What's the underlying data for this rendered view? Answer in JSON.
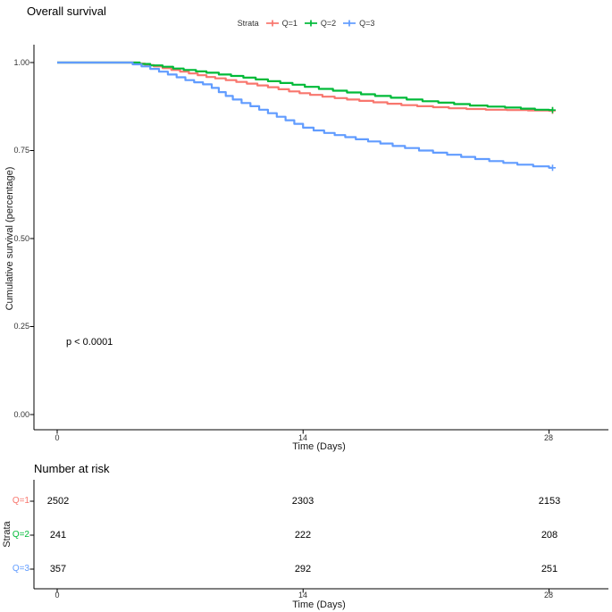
{
  "chart_data": {
    "type": "line",
    "variant": "kaplan_meier_step",
    "title": "Overall survival",
    "xlabel": "Time (Days)",
    "ylabel": "Cumulative survival (percentage)",
    "xlim": [
      0,
      28
    ],
    "ylim": [
      0,
      1
    ],
    "xticks": [
      0,
      14,
      28
    ],
    "xtick_labels": [
      "0",
      "14",
      "28"
    ],
    "yticks": [
      1.0,
      0.75,
      0.5,
      0.25,
      0.0
    ],
    "ytick_labels": [
      "1.00",
      "0.75",
      "0.50",
      "0.25",
      "0.00"
    ],
    "grid": false,
    "legend": {
      "title": "Strata",
      "position": "top"
    },
    "annotation": {
      "pvalue": "p < 0.0001"
    },
    "series": [
      {
        "name": "Q=1",
        "color": "#F8766D",
        "censored_at_end": true,
        "points": [
          [
            0,
            1
          ],
          [
            4.1,
            1
          ],
          [
            4.5,
            0.997
          ],
          [
            5,
            0.993
          ],
          [
            5.5,
            0.989
          ],
          [
            6,
            0.984
          ],
          [
            6.5,
            0.979
          ],
          [
            7,
            0.974
          ],
          [
            7.5,
            0.969
          ],
          [
            8,
            0.964
          ],
          [
            8.5,
            0.959
          ],
          [
            9,
            0.955
          ],
          [
            9.6,
            0.95
          ],
          [
            10.2,
            0.945
          ],
          [
            10.8,
            0.94
          ],
          [
            11.4,
            0.935
          ],
          [
            12,
            0.93
          ],
          [
            12.6,
            0.924
          ],
          [
            13.2,
            0.918
          ],
          [
            13.8,
            0.913
          ],
          [
            14.4,
            0.908
          ],
          [
            15.1,
            0.903
          ],
          [
            15.8,
            0.899
          ],
          [
            16.5,
            0.895
          ],
          [
            17.2,
            0.891
          ],
          [
            18,
            0.887
          ],
          [
            18.8,
            0.883
          ],
          [
            19.6,
            0.879
          ],
          [
            20.5,
            0.876
          ],
          [
            21.4,
            0.873
          ],
          [
            22.3,
            0.87
          ],
          [
            23.3,
            0.868
          ],
          [
            24.4,
            0.866
          ],
          [
            25.6,
            0.865
          ],
          [
            26.8,
            0.864
          ],
          [
            28,
            0.863
          ]
        ]
      },
      {
        "name": "Q=2",
        "color": "#00BA38",
        "censored_at_end": true,
        "points": [
          [
            0,
            1
          ],
          [
            4.3,
            1
          ],
          [
            4.7,
            0.996
          ],
          [
            5.3,
            0.992
          ],
          [
            6,
            0.988
          ],
          [
            6.6,
            0.983
          ],
          [
            7.2,
            0.979
          ],
          [
            7.9,
            0.975
          ],
          [
            8.5,
            0.971
          ],
          [
            9.2,
            0.966
          ],
          [
            9.9,
            0.962
          ],
          [
            10.6,
            0.957
          ],
          [
            11.3,
            0.952
          ],
          [
            12,
            0.947
          ],
          [
            12.7,
            0.942
          ],
          [
            13.4,
            0.937
          ],
          [
            14.1,
            0.931
          ],
          [
            14.9,
            0.925
          ],
          [
            15.7,
            0.92
          ],
          [
            16.5,
            0.915
          ],
          [
            17.3,
            0.91
          ],
          [
            18.1,
            0.905
          ],
          [
            19,
            0.9
          ],
          [
            19.9,
            0.895
          ],
          [
            20.8,
            0.89
          ],
          [
            21.7,
            0.886
          ],
          [
            22.6,
            0.882
          ],
          [
            23.5,
            0.878
          ],
          [
            24.5,
            0.875
          ],
          [
            25.5,
            0.872
          ],
          [
            26.4,
            0.869
          ],
          [
            27.2,
            0.866
          ],
          [
            28,
            0.865
          ]
        ]
      },
      {
        "name": "Q=3",
        "color": "#619CFF",
        "censored_at_end": true,
        "points": [
          [
            0,
            1
          ],
          [
            3.9,
            1
          ],
          [
            4.3,
            0.995
          ],
          [
            4.8,
            0.989
          ],
          [
            5.3,
            0.982
          ],
          [
            5.8,
            0.974
          ],
          [
            6.3,
            0.966
          ],
          [
            6.8,
            0.958
          ],
          [
            7.3,
            0.95
          ],
          [
            7.8,
            0.944
          ],
          [
            8.3,
            0.938
          ],
          [
            8.8,
            0.928
          ],
          [
            9.2,
            0.916
          ],
          [
            9.6,
            0.905
          ],
          [
            10,
            0.895
          ],
          [
            10.5,
            0.885
          ],
          [
            11,
            0.876
          ],
          [
            11.5,
            0.866
          ],
          [
            12,
            0.856
          ],
          [
            12.5,
            0.846
          ],
          [
            13,
            0.836
          ],
          [
            13.5,
            0.826
          ],
          [
            14,
            0.815
          ],
          [
            14.6,
            0.807
          ],
          [
            15.2,
            0.8
          ],
          [
            15.8,
            0.794
          ],
          [
            16.4,
            0.788
          ],
          [
            17,
            0.782
          ],
          [
            17.7,
            0.776
          ],
          [
            18.4,
            0.77
          ],
          [
            19.1,
            0.763
          ],
          [
            19.8,
            0.757
          ],
          [
            20.6,
            0.75
          ],
          [
            21.4,
            0.744
          ],
          [
            22.2,
            0.738
          ],
          [
            23,
            0.732
          ],
          [
            23.8,
            0.726
          ],
          [
            24.6,
            0.72
          ],
          [
            25.4,
            0.715
          ],
          [
            26.2,
            0.71
          ],
          [
            27.1,
            0.705
          ],
          [
            28,
            0.701
          ]
        ]
      }
    ],
    "risk_table": {
      "title": "Number at risk",
      "ylabel": "Strata",
      "xlabel": "Time (Days)",
      "times": [
        0,
        14,
        28
      ],
      "xtick_labels": [
        "0",
        "14",
        "28"
      ],
      "rows": [
        {
          "name": "Q=1",
          "color": "#F8766D",
          "values": [
            2502,
            2303,
            2153
          ]
        },
        {
          "name": "Q=2",
          "color": "#00BA38",
          "values": [
            241,
            222,
            208
          ]
        },
        {
          "name": "Q=3",
          "color": "#619CFF",
          "values": [
            357,
            292,
            251
          ]
        }
      ]
    }
  }
}
